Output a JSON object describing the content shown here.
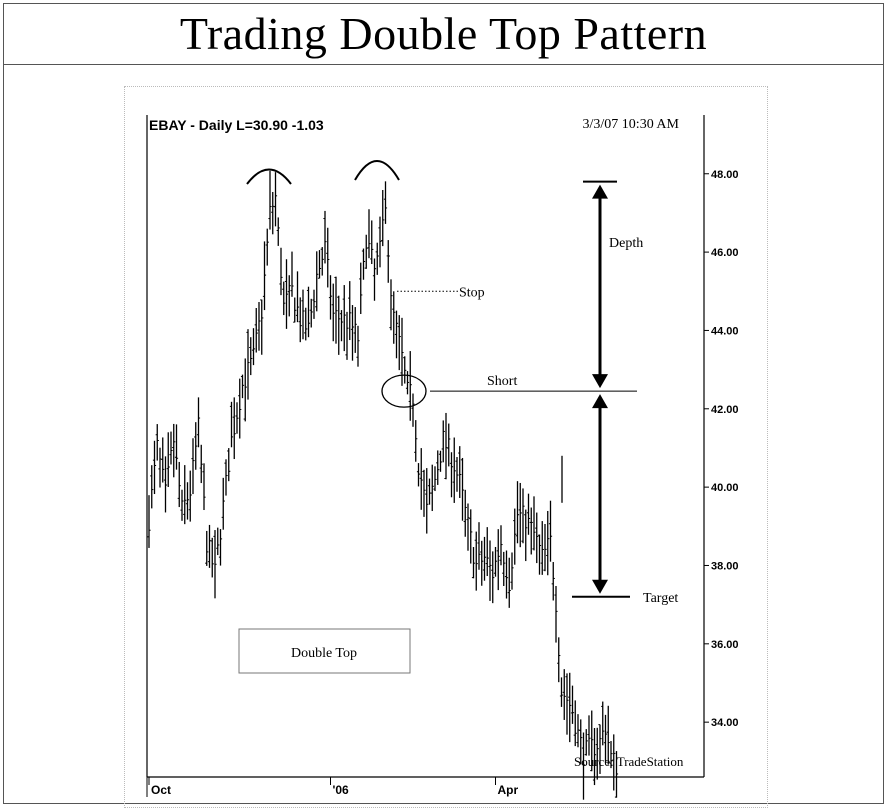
{
  "page": {
    "title": "Trading Double Top Pattern"
  },
  "chart_header": {
    "symbol_line": "EBAY - Daily  L=30.90  -1.03",
    "timestamp": "3/3/07 10:30 AM"
  },
  "annotations": {
    "depth": "Depth",
    "stop": "Stop",
    "short": "Short",
    "target": "Target",
    "pattern_box": "Double Top",
    "source": "Source: TradeStation"
  },
  "chart_data": {
    "type": "bar",
    "style": "ohlc",
    "title": "EBAY - Daily  L=30.90  -1.03",
    "y_ticks": [
      "48.00",
      "46.00",
      "44.00",
      "42.00",
      "40.00",
      "38.00",
      "36.00",
      "34.00"
    ],
    "ylim": [
      32.6,
      49.5
    ],
    "x_ticks": [
      {
        "label": "Oct",
        "index": 0
      },
      {
        "label": "'06",
        "index": 66
      },
      {
        "label": "Apr",
        "index": 126
      }
    ],
    "grid": false,
    "levels": {
      "top": 47.8,
      "stop": 45.0,
      "short": 42.45,
      "target": 37.2
    },
    "pivots": [
      [
        0,
        39.2
      ],
      [
        3,
        41.0
      ],
      [
        6,
        39.8
      ],
      [
        9,
        41.2
      ],
      [
        12,
        39.4
      ],
      [
        15,
        39.9
      ],
      [
        18,
        41.5
      ],
      [
        21,
        38.6
      ],
      [
        24,
        37.8
      ],
      [
        27,
        39.5
      ],
      [
        30,
        41.2
      ],
      [
        34,
        42.6
      ],
      [
        38,
        43.3
      ],
      [
        41,
        44.5
      ],
      [
        44,
        47.0
      ],
      [
        46,
        47.4
      ],
      [
        49,
        44.6
      ],
      [
        52,
        45.0
      ],
      [
        55,
        44.3
      ],
      [
        58,
        44.0
      ],
      [
        61,
        45.4
      ],
      [
        64,
        46.1
      ],
      [
        67,
        44.4
      ],
      [
        70,
        44.3
      ],
      [
        73,
        44.2
      ],
      [
        76,
        43.8
      ],
      [
        79,
        46.4
      ],
      [
        82,
        45.5
      ],
      [
        84,
        46.0
      ],
      [
        86,
        47.4
      ],
      [
        88,
        44.7
      ],
      [
        90,
        44.0
      ],
      [
        92,
        43.3
      ],
      [
        94,
        42.4
      ],
      [
        96,
        42.3
      ],
      [
        98,
        40.6
      ],
      [
        101,
        39.4
      ],
      [
        104,
        40.2
      ],
      [
        107,
        41.2
      ],
      [
        110,
        40.8
      ],
      [
        113,
        40.1
      ],
      [
        116,
        39.0
      ],
      [
        119,
        38.0
      ],
      [
        122,
        38.2
      ],
      [
        125,
        37.8
      ],
      [
        128,
        38.6
      ],
      [
        131,
        37.6
      ],
      [
        134,
        39.3
      ],
      [
        137,
        39.2
      ],
      [
        140,
        38.8
      ],
      [
        143,
        38.2
      ],
      [
        146,
        38.6
      ],
      [
        148,
        37.1
      ],
      [
        150,
        34.8
      ],
      [
        152,
        34.6
      ],
      [
        154,
        34.3
      ],
      [
        156,
        33.7
      ],
      [
        158,
        33.2
      ],
      [
        164,
        33.5
      ],
      [
        166,
        33.9
      ],
      [
        168,
        33.1
      ],
      [
        170,
        32.9
      ]
    ]
  }
}
